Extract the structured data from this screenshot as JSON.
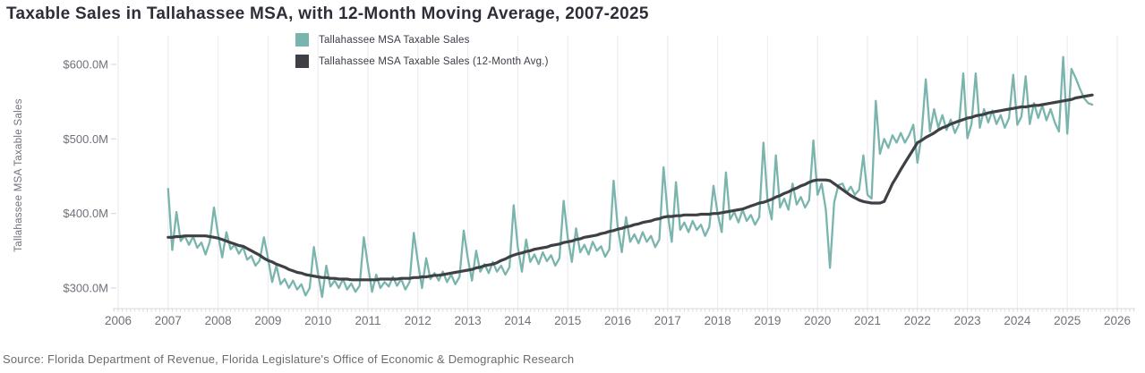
{
  "title": "Taxable Sales in Tallahassee MSA, with 12-Month Moving Average, 2007-2025",
  "source": "Source: Florida Department of Revenue, Florida Legislature's Office of Economic & Demographic Research",
  "y_axis_title": "Tallahassee MSA Taxable Sales",
  "legend": {
    "items": [
      {
        "label": "Tallahassee MSA Taxable Sales",
        "color": "#7ab5ad"
      },
      {
        "label": "Tallahassee MSA Taxable Sales (12-Month Avg.)",
        "color": "#3e4046"
      }
    ]
  },
  "colors": {
    "sales_line": "#7ab5ad",
    "avg_line": "#3e4046",
    "grid": "#ededf2",
    "axis": "#d9dae1",
    "tick_text": "#70707b",
    "title_text": "#2d2e37"
  },
  "chart_data": {
    "type": "line",
    "title": "Taxable Sales in Tallahassee MSA, with 12-Month Moving Average, 2007-2025",
    "xlabel": "",
    "ylabel": "Tallahassee MSA Taxable Sales",
    "units": "millions of dollars",
    "x_ticks": [
      2006,
      2007,
      2008,
      2009,
      2010,
      2011,
      2012,
      2013,
      2014,
      2015,
      2016,
      2017,
      2018,
      2019,
      2020,
      2021,
      2022,
      2023,
      2024,
      2025,
      2026
    ],
    "y_ticks": {
      "values": [
        300,
        400,
        500,
        600
      ],
      "labels": [
        "$300.0M",
        "$400.0M",
        "$500.0M",
        "$600.0M"
      ]
    },
    "xlim": [
      2006,
      2026.4
    ],
    "ylim": [
      272,
      638
    ],
    "grid": "vertical-only",
    "legend_position": "top-center",
    "start_year": 2007,
    "start_month": 1,
    "frequency": "monthly",
    "series": [
      {
        "name": "Tallahassee MSA Taxable Sales",
        "color": "#7ab5ad",
        "values": [
          433,
          351,
          402,
          363,
          370,
          358,
          369,
          354,
          361,
          345,
          362,
          408,
          372,
          341,
          375,
          352,
          358,
          346,
          355,
          338,
          343,
          330,
          337,
          368,
          340,
          308,
          330,
          305,
          312,
          300,
          310,
          298,
          305,
          290,
          300,
          355,
          320,
          288,
          330,
          302,
          310,
          300,
          312,
          298,
          306,
          295,
          303,
          368,
          330,
          295,
          318,
          300,
          308,
          302,
          315,
          303,
          312,
          298,
          308,
          374,
          335,
          300,
          340,
          312,
          320,
          310,
          322,
          308,
          318,
          305,
          315,
          377,
          340,
          310,
          350,
          322,
          332,
          320,
          335,
          322,
          330,
          318,
          328,
          411,
          355,
          322,
          365,
          335,
          345,
          332,
          348,
          336,
          344,
          330,
          340,
          417,
          368,
          335,
          380,
          348,
          358,
          345,
          362,
          350,
          356,
          342,
          352,
          444,
          382,
          348,
          395,
          362,
          372,
          360,
          375,
          362,
          370,
          355,
          365,
          462,
          400,
          362,
          442,
          378,
          388,
          375,
          390,
          378,
          385,
          370,
          382,
          437,
          400,
          375,
          455,
          392,
          402,
          388,
          405,
          390,
          398,
          385,
          395,
          495,
          417,
          392,
          478,
          408,
          420,
          405,
          440,
          412,
          422,
          408,
          418,
          498,
          425,
          440,
          405,
          327,
          415,
          438,
          440,
          428,
          436,
          425,
          432,
          478,
          425,
          420,
          551,
          480,
          500,
          488,
          505,
          495,
          508,
          495,
          505,
          519,
          468,
          505,
          580,
          510,
          540,
          515,
          532,
          512,
          526,
          508,
          520,
          588,
          501,
          520,
          588,
          515,
          540,
          522,
          538,
          520,
          532,
          515,
          528,
          586,
          519,
          530,
          584,
          520,
          548,
          528,
          545,
          525,
          540,
          522,
          510,
          610,
          507,
          594,
          582,
          568,
          555,
          548,
          546
        ]
      },
      {
        "name": "Tallahassee MSA Taxable Sales (12-Month Avg.)",
        "color": "#3e4046",
        "values": [
          368,
          368,
          369,
          369,
          370,
          370,
          370,
          370,
          370,
          370,
          369,
          368,
          367,
          365,
          363,
          361,
          359,
          357,
          356,
          353,
          350,
          347,
          344,
          340,
          337,
          335,
          332,
          330,
          328,
          325,
          323,
          321,
          320,
          318,
          317,
          316,
          315,
          314,
          314,
          313,
          313,
          312,
          312,
          312,
          311,
          311,
          311,
          311,
          311,
          311,
          311,
          312,
          312,
          312,
          312,
          312,
          313,
          313,
          313,
          314,
          314,
          315,
          315,
          316,
          317,
          317,
          318,
          319,
          320,
          321,
          322,
          323,
          324,
          325,
          327,
          328,
          330,
          331,
          332,
          334,
          337,
          339,
          342,
          344,
          346,
          347,
          349,
          350,
          352,
          353,
          354,
          355,
          357,
          358,
          359,
          361,
          362,
          363,
          365,
          366,
          368,
          369,
          370,
          371,
          373,
          374,
          376,
          377,
          379,
          380,
          382,
          383,
          385,
          386,
          388,
          389,
          390,
          392,
          393,
          395,
          396,
          396,
          397,
          397,
          398,
          398,
          398,
          398,
          399,
          399,
          399,
          400,
          400,
          401,
          402,
          403,
          404,
          405,
          406,
          408,
          410,
          412,
          414,
          415,
          417,
          419,
          422,
          424,
          427,
          429,
          432,
          434,
          437,
          439,
          442,
          444,
          445,
          445,
          445,
          444,
          440,
          436,
          432,
          428,
          424,
          421,
          418,
          416,
          415,
          414,
          414,
          414,
          416,
          428,
          440,
          449,
          459,
          468,
          477,
          486,
          495,
          498,
          502,
          505,
          508,
          512,
          515,
          517,
          520,
          522,
          524,
          526,
          528,
          529,
          531,
          532,
          533,
          535,
          536,
          537,
          538,
          539,
          540,
          541,
          542,
          543,
          543,
          544,
          545,
          545,
          546,
          547,
          548,
          549,
          550,
          551,
          552,
          553,
          555,
          556,
          557,
          558,
          559
        ]
      }
    ]
  }
}
